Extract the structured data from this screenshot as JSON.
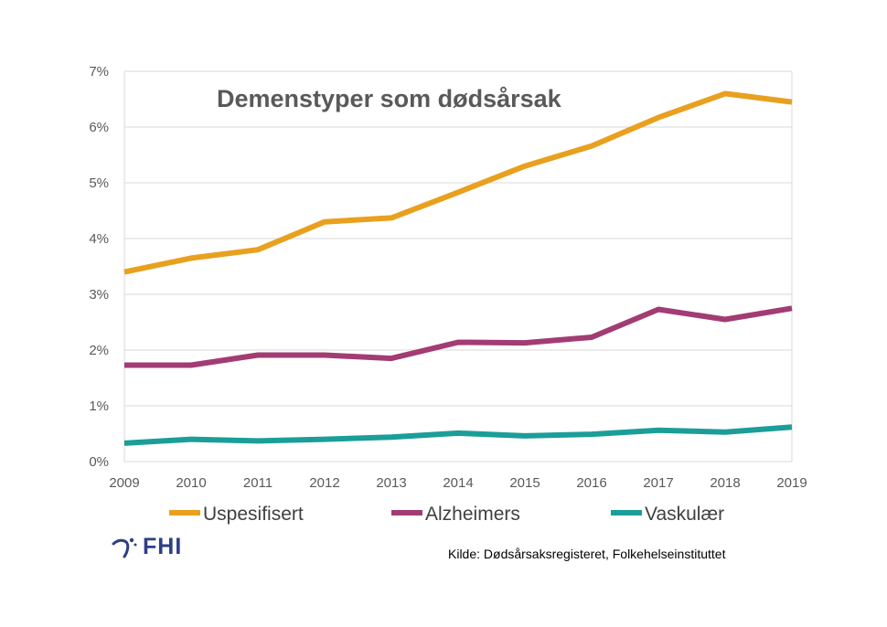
{
  "colors": {
    "uspesifisert": "#e8a01e",
    "alzheimers": "#a23c73",
    "vaskulaer": "#1b9e99",
    "grid": "#d9d9d9",
    "logo": "#2d3f87"
  },
  "logo": {
    "text": "FHI",
    "icon": "fhi-swirl-icon"
  },
  "source": "Kilde: Dødsårsaksregisteret, Folkehelseinstituttet",
  "chart_data": {
    "type": "line",
    "title": "Demenstyper som dødsårsak",
    "xlabel": "",
    "ylabel": "",
    "x": [
      "2009",
      "2010",
      "2011",
      "2012",
      "2013",
      "2014",
      "2015",
      "2016",
      "2017",
      "2018",
      "2019"
    ],
    "ylim": [
      0,
      7
    ],
    "yticks": [
      "0%",
      "1%",
      "2%",
      "3%",
      "4%",
      "5%",
      "6%",
      "7%"
    ],
    "grid": "horizontal",
    "legend_position": "bottom",
    "series": [
      {
        "name": "Uspesifisert",
        "color": "#e8a01e",
        "values": [
          3.4,
          3.65,
          3.8,
          4.3,
          4.37,
          4.83,
          5.3,
          5.66,
          6.17,
          6.6,
          6.45
        ]
      },
      {
        "name": "Alzheimers",
        "color": "#a23c73",
        "values": [
          1.73,
          1.73,
          1.91,
          1.91,
          1.85,
          2.14,
          2.13,
          2.23,
          2.73,
          2.55,
          2.75
        ]
      },
      {
        "name": "Vaskulær",
        "color": "#1b9e99",
        "values": [
          0.33,
          0.4,
          0.37,
          0.4,
          0.44,
          0.51,
          0.46,
          0.49,
          0.56,
          0.53,
          0.62
        ]
      }
    ]
  }
}
